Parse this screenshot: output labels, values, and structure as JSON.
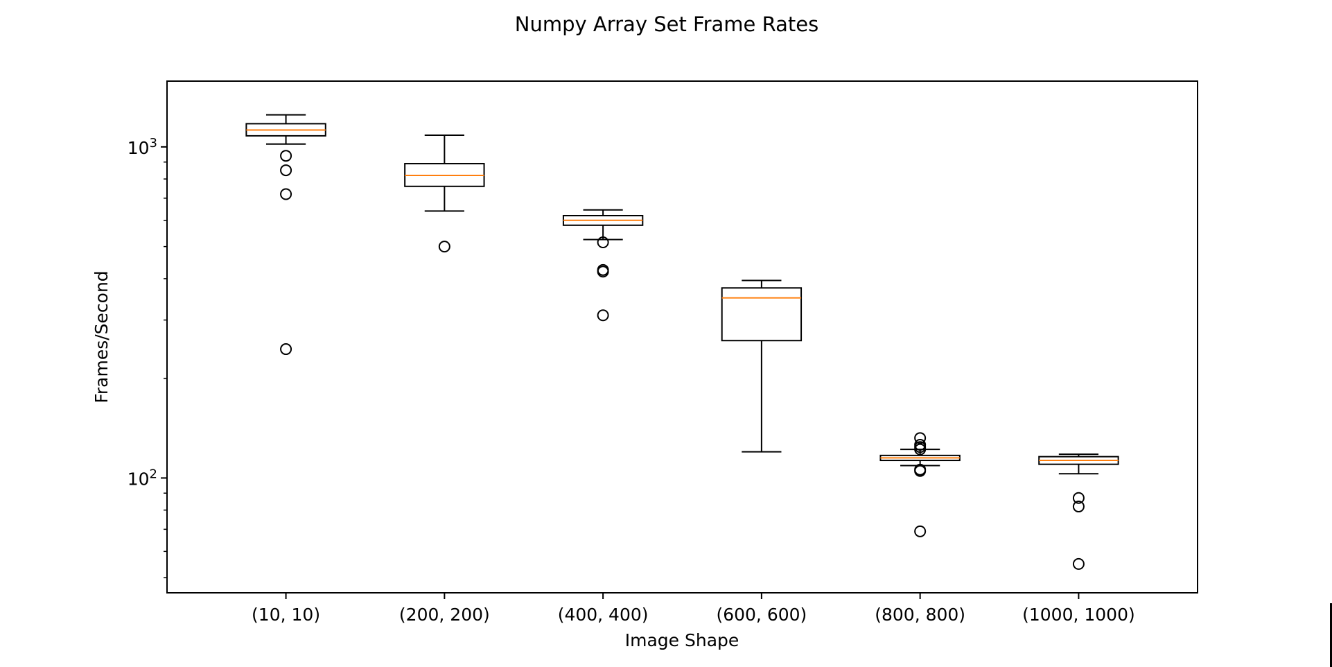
{
  "chart_data": {
    "type": "box",
    "title": "Numpy Array Set Frame Rates",
    "xlabel": "Image Shape",
    "ylabel": "Frames/Second",
    "yscale": "log",
    "ylim": [
      45,
      1580
    ],
    "yticks": [
      {
        "value": 100,
        "base": "10",
        "exp": "2"
      },
      {
        "value": 1000,
        "base": "10",
        "exp": "3"
      }
    ],
    "grid": false,
    "colors": {
      "box": "#000000",
      "median": "#ff7f0e",
      "flier": "#000000"
    },
    "categories": [
      "(10, 10)",
      "(200, 200)",
      "(400, 400)",
      "(600, 600)",
      "(800, 800)",
      "(1000, 1000)"
    ],
    "boxes": [
      {
        "whisker_low": 1020,
        "q1": 1080,
        "median": 1125,
        "q3": 1175,
        "whisker_high": 1250,
        "fliers": [
          940,
          850,
          720,
          245
        ]
      },
      {
        "whisker_low": 640,
        "q1": 760,
        "median": 820,
        "q3": 890,
        "whisker_high": 1085,
        "fliers": [
          500
        ]
      },
      {
        "whisker_low": 525,
        "q1": 580,
        "median": 600,
        "q3": 620,
        "whisker_high": 645,
        "fliers": [
          515,
          425,
          420,
          310
        ]
      },
      {
        "whisker_low": 120,
        "q1": 260,
        "median": 350,
        "q3": 375,
        "whisker_high": 395,
        "fliers": []
      },
      {
        "whisker_low": 109,
        "q1": 113,
        "median": 115,
        "q3": 117,
        "whisker_high": 122,
        "fliers": [
          132,
          126,
          124,
          122,
          106,
          105,
          69
        ]
      },
      {
        "whisker_low": 103,
        "q1": 110,
        "median": 113,
        "q3": 116,
        "whisker_high": 118,
        "fliers": [
          87,
          82,
          55
        ]
      }
    ]
  }
}
